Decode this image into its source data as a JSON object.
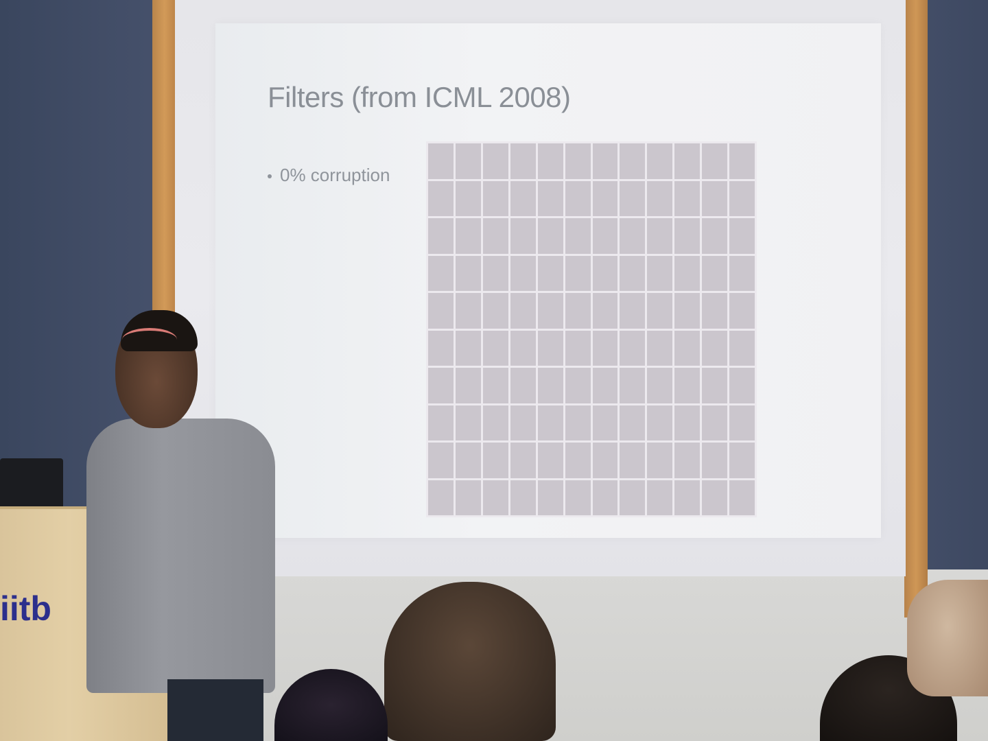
{
  "slide": {
    "title": "Filters (from ICML 2008)",
    "bullet": "0% corruption",
    "filter_grid": {
      "rows": 10,
      "cols": 12
    }
  },
  "podium": {
    "logo_text": "iitb"
  },
  "colors": {
    "slide_text": "#8a8f96",
    "frame_wood": "#c99253",
    "wall": "#45506a"
  }
}
